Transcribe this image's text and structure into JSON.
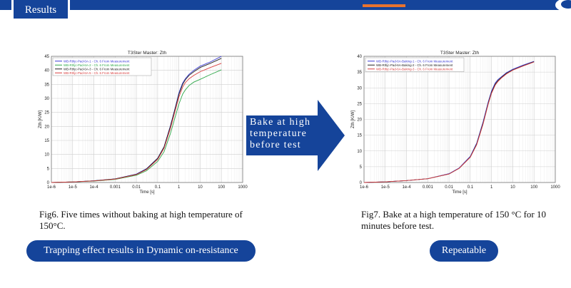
{
  "header": {
    "tab_label": "Results"
  },
  "arrow": {
    "lines": [
      "Bake at high",
      "temperature",
      "before test"
    ]
  },
  "captions": {
    "left": "Fig6. Five times without baking at high temperature of 150°C.",
    "right": "Fig7. Bake at a high temperature of 150 °C for 10 minutes before test."
  },
  "buttons": {
    "left": "Trapping effect results in Dynamic on-resistance",
    "right": "Repeatable"
  },
  "colors": {
    "brand": "#15449a",
    "accent": "#e8732e"
  },
  "chart_data": [
    {
      "type": "line",
      "title": "T3Ster Master:  Zth",
      "xlabel": "Time [s]",
      "ylabel": "Zth [K/W]",
      "xscale": "log",
      "xlim": [
        1e-06,
        1000
      ],
      "ylim": [
        0,
        45
      ],
      "xticks": [
        1e-06,
        1e-05,
        0.0001,
        0.001,
        0.01,
        0.1,
        1,
        10,
        100,
        1000
      ],
      "xtick_labels": [
        "1e-6",
        "1e-5",
        "1e-4",
        "0.001",
        "0.01",
        "0.1",
        "1",
        "10",
        "100",
        "1000"
      ],
      "yticks": [
        0,
        5,
        10,
        15,
        20,
        25,
        30,
        35,
        40,
        45
      ],
      "grid": true,
      "legend_position": "top-left",
      "series": [
        {
          "name": "WB-Rthjc-Pad-6A-1 - Ch. 6 From Measurement",
          "color": "#3b3bd6",
          "x": [
            1e-06,
            1e-05,
            0.0001,
            0.001,
            0.01,
            0.03,
            0.1,
            0.2,
            0.4,
            0.7,
            1,
            1.5,
            2,
            3,
            5,
            10,
            30,
            100
          ],
          "y": [
            0,
            0.2,
            0.6,
            1.3,
            3.0,
            4.9,
            8.7,
            12.8,
            20.3,
            27.3,
            32.0,
            35.5,
            37.0,
            38.6,
            40.0,
            41.5,
            43.0,
            45.0
          ]
        },
        {
          "name": "WB-Rthjc-Pad-6A-2 - Ch. 6 From Measurement",
          "color": "#2fa84a",
          "x": [
            1e-06,
            1e-05,
            0.0001,
            0.001,
            0.01,
            0.03,
            0.1,
            0.2,
            0.4,
            0.7,
            1,
            1.5,
            2,
            3,
            5,
            10,
            30,
            100
          ],
          "y": [
            0,
            0.2,
            0.5,
            1.1,
            2.6,
            4.2,
            7.5,
            11.0,
            17.5,
            24.0,
            28.0,
            31.5,
            33.0,
            34.6,
            35.8,
            36.8,
            38.5,
            40.2
          ]
        },
        {
          "name": "WB-Rthjc-Pad-6A-3 - Ch. 6 From Measurement",
          "color": "#222222",
          "x": [
            1e-06,
            1e-05,
            0.0001,
            0.001,
            0.01,
            0.03,
            0.1,
            0.2,
            0.4,
            0.7,
            1,
            1.5,
            2,
            3,
            5,
            10,
            30,
            100
          ],
          "y": [
            0,
            0.2,
            0.6,
            1.3,
            2.9,
            4.8,
            8.6,
            12.7,
            20.0,
            27.0,
            31.5,
            35.0,
            36.6,
            38.2,
            39.5,
            41.0,
            42.5,
            44.3
          ]
        },
        {
          "name": "WB-Rthjc-Pad-6A-5 - Ch. 6 From Measurement",
          "color": "#d94040",
          "x": [
            1e-06,
            1e-05,
            0.0001,
            0.001,
            0.01,
            0.03,
            0.1,
            0.2,
            0.4,
            0.7,
            1,
            1.5,
            2,
            3,
            5,
            10,
            30,
            100
          ],
          "y": [
            0,
            0.2,
            0.55,
            1.2,
            2.8,
            4.6,
            8.2,
            12.2,
            19.3,
            26.2,
            30.5,
            34.0,
            35.6,
            37.0,
            38.2,
            39.5,
            41.0,
            42.5
          ]
        }
      ]
    },
    {
      "type": "line",
      "title": "T3Ster Master:  Zth",
      "xlabel": "Time [s]",
      "ylabel": "Zth [K/W]",
      "xscale": "log",
      "xlim": [
        1e-06,
        1000
      ],
      "ylim": [
        0,
        40
      ],
      "xticks": [
        1e-06,
        1e-05,
        0.0001,
        0.001,
        0.01,
        0.1,
        1,
        10,
        100,
        1000
      ],
      "xtick_labels": [
        "1e-6",
        "1e-5",
        "1e-4",
        "0.001",
        "0.01",
        "0.1",
        "1",
        "10",
        "100",
        "1000"
      ],
      "yticks": [
        0,
        5,
        10,
        15,
        20,
        25,
        30,
        35,
        40
      ],
      "grid": true,
      "legend_position": "top-left",
      "series": [
        {
          "name": "WB-Rthjc-Pad-6A-Baking-1 - Ch. 6 From Measurement",
          "color": "#3b3bd6",
          "x": [
            1e-06,
            1e-05,
            0.0001,
            0.001,
            0.01,
            0.03,
            0.1,
            0.2,
            0.4,
            0.7,
            1,
            1.5,
            2,
            3,
            5,
            10,
            30,
            100
          ],
          "y": [
            0,
            0.2,
            0.6,
            1.2,
            2.8,
            4.6,
            8.3,
            12.5,
            19.2,
            25.6,
            29.0,
            31.6,
            32.6,
            33.6,
            34.8,
            35.9,
            37.2,
            38.4
          ]
        },
        {
          "name": "WB-Rthjc-Pad-6A-Baking-2 - Ch. 6 From Measurement",
          "color": "#222222",
          "x": [
            1e-06,
            1e-05,
            0.0001,
            0.001,
            0.01,
            0.03,
            0.1,
            0.2,
            0.4,
            0.7,
            1,
            1.5,
            2,
            3,
            5,
            10,
            30,
            100
          ],
          "y": [
            0,
            0.2,
            0.6,
            1.2,
            2.7,
            4.5,
            8.1,
            12.2,
            18.8,
            25.2,
            28.6,
            31.2,
            32.3,
            33.4,
            34.6,
            35.7,
            37.0,
            38.3
          ]
        },
        {
          "name": "WB-Rthjc-Pad-6A-Baking-3 - Ch. 6 From Measurement",
          "color": "#d94040",
          "x": [
            1e-06,
            1e-05,
            0.0001,
            0.001,
            0.01,
            0.03,
            0.1,
            0.2,
            0.4,
            0.7,
            1,
            1.5,
            2,
            3,
            5,
            10,
            30,
            100
          ],
          "y": [
            0,
            0.2,
            0.6,
            1.2,
            2.7,
            4.5,
            8.0,
            12.0,
            18.5,
            24.9,
            28.3,
            30.9,
            32.0,
            33.2,
            34.4,
            35.6,
            36.9,
            38.2
          ]
        }
      ]
    }
  ]
}
